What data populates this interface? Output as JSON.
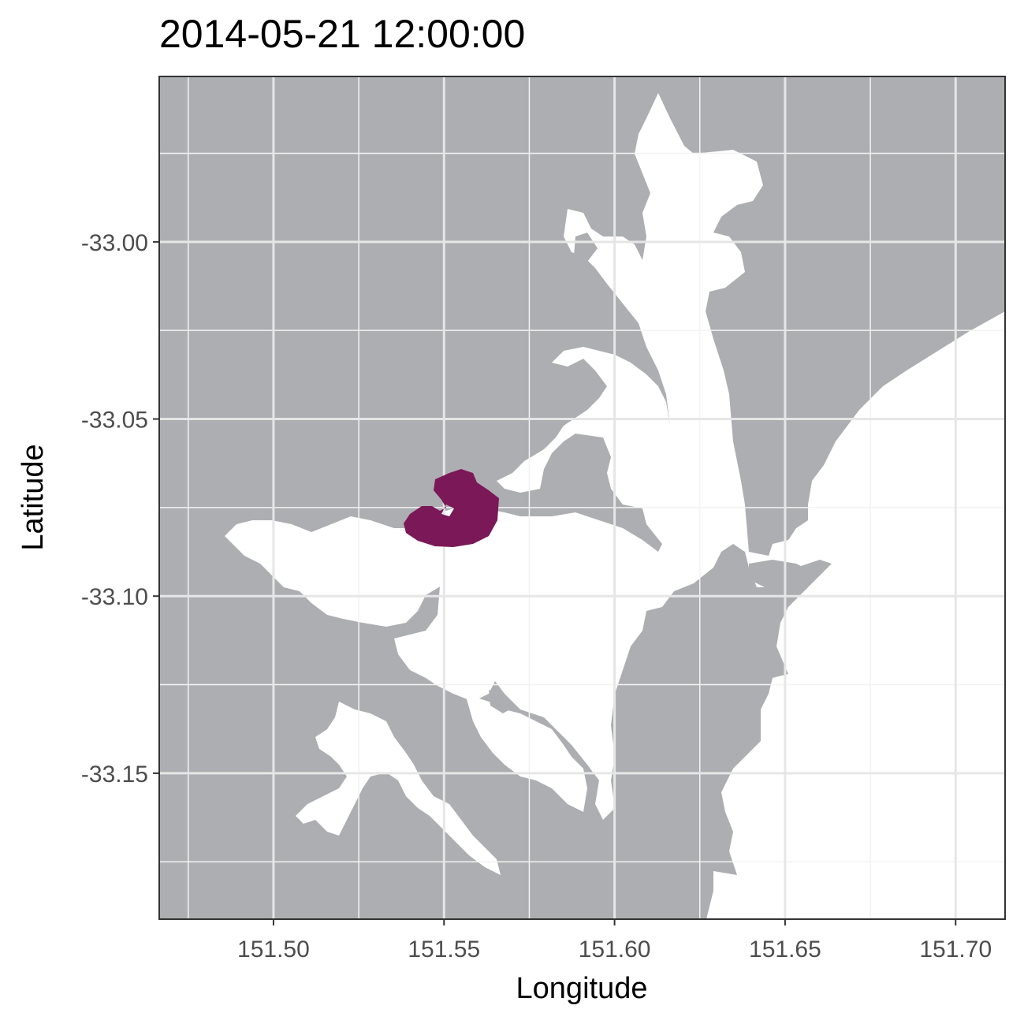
{
  "title": "2014-05-21 12:00:00",
  "colors": {
    "land": "#ADAEB1",
    "water": "#FFFFFF",
    "grid_major": "#E6E6E6",
    "grid_minor": "#F3F3F3",
    "panel_border": "#333333",
    "plume": "#7A1858",
    "tick_text": "#4D4D4D"
  },
  "chart_data": {
    "type": "map",
    "title": "2014-05-21 12:00:00",
    "xlabel": "Longitude",
    "ylabel": "Latitude",
    "xlim": [
      151.4665,
      151.7145
    ],
    "ylim": [
      -33.1912,
      -32.9533
    ],
    "x_ticks": [
      151.5,
      151.55,
      151.6,
      151.65,
      151.7
    ],
    "x_tick_labels": [
      "151.50",
      "151.55",
      "151.60",
      "151.65",
      "151.70"
    ],
    "y_ticks": [
      -33.0,
      -33.05,
      -33.1,
      -33.15
    ],
    "y_tick_labels": [
      "-33.00",
      "-33.05",
      "-33.10",
      "-33.15"
    ],
    "grid": true,
    "layers": [
      {
        "name": "land",
        "color": "#ADAEB1"
      },
      {
        "name": "water",
        "color": "#FFFFFF"
      },
      {
        "name": "plume",
        "color": "#7A1858",
        "centroid": [
          151.555,
          -33.071
        ]
      }
    ]
  }
}
